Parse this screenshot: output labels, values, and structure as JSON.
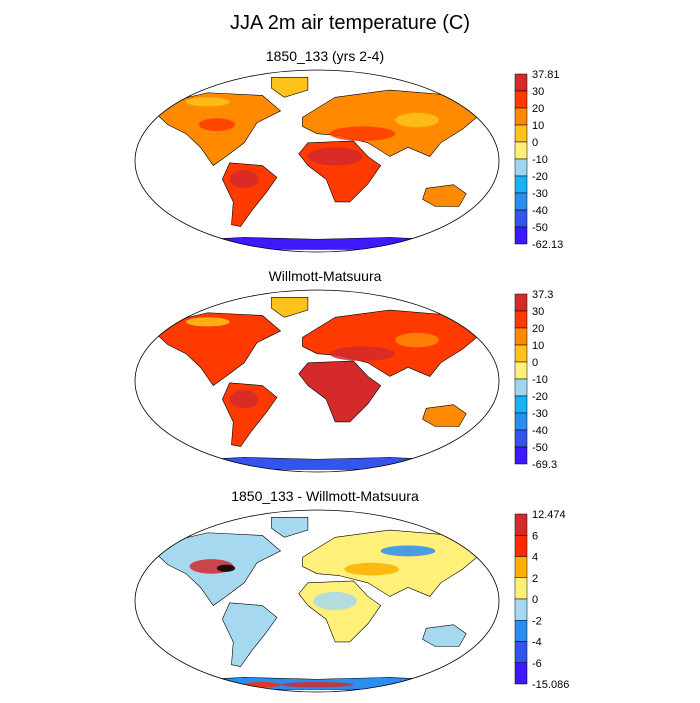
{
  "chart_data": {
    "type": "heatmap",
    "title": "JJA 2m air temperature (C)",
    "projection": "Robinson",
    "panels": [
      {
        "title": "1850_133 (yrs 2-4)",
        "variable": "2m air temperature",
        "units": "C",
        "levels": [
          "-50",
          "-40",
          "-30",
          "-20",
          "-10",
          "0",
          "10",
          "20",
          "30"
        ],
        "min_label": "-62.13",
        "max_label": "37.81",
        "colors": [
          "#3d19ff",
          "#3355ee",
          "#2a8ef0",
          "#18b3f5",
          "#9fd5f2",
          "#fff07a",
          "#ffc21a",
          "#ff8a00",
          "#ff3a00",
          "#d42a2a"
        ]
      },
      {
        "title": "Willmott-Matsuura",
        "variable": "2m air temperature",
        "units": "C",
        "levels": [
          "-50",
          "-40",
          "-30",
          "-20",
          "-10",
          "0",
          "10",
          "20",
          "30"
        ],
        "min_label": "-69.3",
        "max_label": "37.3",
        "colors": [
          "#3d19ff",
          "#3355ee",
          "#2a8ef0",
          "#18b3f5",
          "#9fd5f2",
          "#fff07a",
          "#ffc21a",
          "#ff8a00",
          "#ff3a00",
          "#d42a2a"
        ]
      },
      {
        "title": "1850_133 - Willmott-Matsuura",
        "variable": "2m air temperature difference",
        "units": "C",
        "levels": [
          "-6",
          "-4",
          "-2",
          "0",
          "2",
          "4",
          "6"
        ],
        "min_label": "-15.086",
        "max_label": "12.474",
        "colors": [
          "#3d19ff",
          "#3355ee",
          "#2a8ef0",
          "#a6d8f0",
          "#fff07a",
          "#ffb000",
          "#ff2a00",
          "#d42a2a"
        ]
      }
    ]
  }
}
